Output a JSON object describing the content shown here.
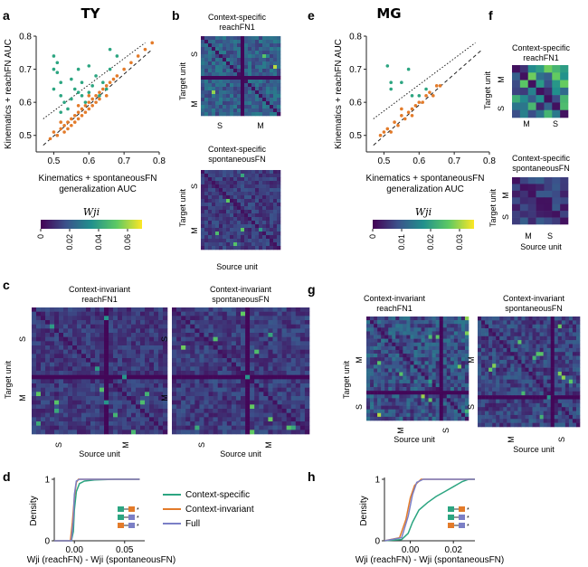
{
  "monkeys": {
    "left": "TY",
    "right": "MG"
  },
  "panel_letters": {
    "a": "a",
    "b": "b",
    "c": "c",
    "d": "d",
    "e": "e",
    "f": "f",
    "g": "g",
    "h": "h"
  },
  "heatmap_titles": {
    "b_top": [
      "Context-specific",
      "reachFN1"
    ],
    "b_bottom": [
      "Context-specific",
      "spontaneousFN"
    ],
    "c_left": [
      "Context-invariant",
      "reachFN1"
    ],
    "c_right": [
      "Context-invariant",
      "spontaneousFN"
    ],
    "f_top": [
      "Context-specific",
      "reachFN1"
    ],
    "f_bottom": [
      "Context-specific",
      "spontaneousFN"
    ],
    "g_left": [
      "Context-invariant",
      "reachFN1"
    ],
    "g_right": [
      "Context-invariant",
      "spontaneousFN"
    ]
  },
  "axis_text": {
    "target_unit": "Target unit",
    "source_unit": "Source unit",
    "S": "S",
    "M": "M"
  },
  "colors": {
    "scatter_green": "#2ca581",
    "scatter_orange": "#e37b2a",
    "heat_dark": "#3b1d6e",
    "context_specific": "#2ca581",
    "context_invariant": "#e37b2a",
    "full": "#7b7fc6"
  },
  "chart_data": [
    {
      "panel": "a",
      "type": "scatter",
      "xlabel": [
        "Kinematics + spontaneousFN",
        "generalization AUC"
      ],
      "ylabel": "Kinematics + reachFN AUC",
      "xlim": [
        0.45,
        0.8
      ],
      "ylim": [
        0.45,
        0.8
      ],
      "xticks": [
        "0.5",
        "0.6",
        "0.7",
        "0.8"
      ],
      "yticks": [
        "0.5",
        "0.6",
        "0.7",
        "0.8"
      ],
      "series": [
        {
          "color": "green",
          "points": [
            [
              0.5,
              0.74
            ],
            [
              0.51,
              0.72
            ],
            [
              0.5,
              0.7
            ],
            [
              0.51,
              0.69
            ],
            [
              0.52,
              0.66
            ],
            [
              0.5,
              0.64
            ],
            [
              0.52,
              0.62
            ],
            [
              0.53,
              0.6
            ],
            [
              0.55,
              0.67
            ],
            [
              0.56,
              0.64
            ],
            [
              0.55,
              0.61
            ],
            [
              0.57,
              0.63
            ],
            [
              0.58,
              0.66
            ],
            [
              0.58,
              0.62
            ],
            [
              0.59,
              0.6
            ],
            [
              0.6,
              0.63
            ],
            [
              0.6,
              0.71
            ],
            [
              0.61,
              0.65
            ],
            [
              0.62,
              0.68
            ],
            [
              0.63,
              0.62
            ],
            [
              0.64,
              0.66
            ],
            [
              0.65,
              0.64
            ],
            [
              0.66,
              0.7
            ],
            [
              0.66,
              0.76
            ],
            [
              0.68,
              0.74
            ],
            [
              0.54,
              0.58
            ],
            [
              0.57,
              0.7
            ],
            [
              0.52,
              0.57
            ]
          ]
        },
        {
          "color": "orange",
          "points": [
            [
              0.49,
              0.49
            ],
            [
              0.5,
              0.51
            ],
            [
              0.51,
              0.5
            ],
            [
              0.52,
              0.52
            ],
            [
              0.53,
              0.53
            ],
            [
              0.54,
              0.54
            ],
            [
              0.54,
              0.52
            ],
            [
              0.55,
              0.55
            ],
            [
              0.56,
              0.56
            ],
            [
              0.56,
              0.54
            ],
            [
              0.57,
              0.57
            ],
            [
              0.58,
              0.58
            ],
            [
              0.58,
              0.56
            ],
            [
              0.59,
              0.59
            ],
            [
              0.6,
              0.6
            ],
            [
              0.6,
              0.58
            ],
            [
              0.61,
              0.61
            ],
            [
              0.62,
              0.62
            ],
            [
              0.62,
              0.6
            ],
            [
              0.63,
              0.63
            ],
            [
              0.64,
              0.64
            ],
            [
              0.65,
              0.65
            ],
            [
              0.66,
              0.66
            ],
            [
              0.67,
              0.67
            ],
            [
              0.68,
              0.68
            ],
            [
              0.7,
              0.7
            ],
            [
              0.72,
              0.72
            ],
            [
              0.74,
              0.74
            ],
            [
              0.76,
              0.76
            ],
            [
              0.78,
              0.78
            ],
            [
              0.53,
              0.51
            ],
            [
              0.55,
              0.53
            ],
            [
              0.57,
              0.55
            ],
            [
              0.59,
              0.57
            ],
            [
              0.61,
              0.59
            ],
            [
              0.63,
              0.61
            ],
            [
              0.65,
              0.62
            ],
            [
              0.52,
              0.54
            ],
            [
              0.57,
              0.59
            ],
            [
              0.6,
              0.62
            ]
          ]
        }
      ]
    },
    {
      "panel": "a-colorbar",
      "type": "colorbar",
      "label": "Wji",
      "range": [
        0,
        0.07
      ],
      "ticks": [
        "0",
        "0.02",
        "0.04",
        "0.06"
      ]
    },
    {
      "panel": "e",
      "type": "scatter",
      "xlabel": [
        "Kinematics + spontaneousFN",
        "generalization AUC"
      ],
      "ylabel": "Kinematics + reachFN AUC",
      "xlim": [
        0.45,
        0.8
      ],
      "ylim": [
        0.45,
        0.8
      ],
      "xticks": [
        "0.5",
        "0.6",
        "0.7",
        "0.8"
      ],
      "yticks": [
        "0.5",
        "0.6",
        "0.7",
        "0.8"
      ],
      "series": [
        {
          "color": "green",
          "points": [
            [
              0.51,
              0.71
            ],
            [
              0.52,
              0.64
            ],
            [
              0.52,
              0.66
            ],
            [
              0.55,
              0.66
            ],
            [
              0.57,
              0.7
            ],
            [
              0.58,
              0.62
            ],
            [
              0.6,
              0.62
            ],
            [
              0.62,
              0.64
            ]
          ]
        },
        {
          "color": "orange",
          "points": [
            [
              0.49,
              0.5
            ],
            [
              0.5,
              0.51
            ],
            [
              0.51,
              0.52
            ],
            [
              0.52,
              0.51
            ],
            [
              0.53,
              0.54
            ],
            [
              0.54,
              0.53
            ],
            [
              0.55,
              0.56
            ],
            [
              0.56,
              0.55
            ],
            [
              0.57,
              0.57
            ],
            [
              0.58,
              0.58
            ],
            [
              0.59,
              0.59
            ],
            [
              0.6,
              0.6
            ],
            [
              0.61,
              0.6
            ],
            [
              0.62,
              0.62
            ],
            [
              0.63,
              0.63
            ],
            [
              0.64,
              0.62
            ],
            [
              0.65,
              0.65
            ],
            [
              0.66,
              0.65
            ],
            [
              0.55,
              0.58
            ],
            [
              0.58,
              0.56
            ]
          ]
        }
      ]
    },
    {
      "panel": "e-colorbar",
      "type": "colorbar",
      "label": "Wji",
      "range": [
        0,
        0.035
      ],
      "ticks": [
        "0",
        "0.01",
        "0.02",
        "0.03"
      ]
    },
    {
      "panel": "d",
      "type": "line",
      "xlabel": "Wji (reachFN) - Wji (spontaneousFN)",
      "ylabel": "Density",
      "xlim": [
        -0.02,
        0.07
      ],
      "ylim": [
        0,
        1
      ],
      "xticks": [
        "0.00",
        "0.05"
      ],
      "yticks": [
        "0",
        "1"
      ],
      "series": [
        {
          "name": "Context-specific",
          "color": "green",
          "points": [
            [
              -0.02,
              0
            ],
            [
              -0.003,
              0
            ],
            [
              -0.001,
              0.15
            ],
            [
              0.0,
              0.5
            ],
            [
              0.002,
              0.8
            ],
            [
              0.005,
              0.93
            ],
            [
              0.01,
              0.97
            ],
            [
              0.02,
              0.99
            ],
            [
              0.04,
              1
            ],
            [
              0.065,
              1
            ]
          ]
        },
        {
          "name": "Context-invariant",
          "color": "orange",
          "points": [
            [
              -0.02,
              0
            ],
            [
              -0.004,
              0
            ],
            [
              -0.002,
              0.3
            ],
            [
              0.0,
              0.7
            ],
            [
              0.002,
              0.95
            ],
            [
              0.004,
              1
            ],
            [
              0.065,
              1
            ]
          ]
        },
        {
          "name": "Full",
          "color": "purple",
          "points": [
            [
              -0.02,
              0
            ],
            [
              -0.003,
              0
            ],
            [
              -0.001,
              0.35
            ],
            [
              0.0,
              0.75
            ],
            [
              0.002,
              0.97
            ],
            [
              0.005,
              1
            ],
            [
              0.065,
              1
            ]
          ]
        }
      ],
      "legend": [
        "Context-specific",
        "Context-invariant",
        "Full"
      ]
    },
    {
      "panel": "h",
      "type": "line",
      "xlabel": "Wji (reachFN) - Wji (spontaneousFN)",
      "ylabel": "Density",
      "xlim": [
        -0.012,
        0.03
      ],
      "ylim": [
        0,
        1
      ],
      "xticks": [
        "0.00",
        "0.02"
      ],
      "yticks": [
        "0",
        "1"
      ],
      "series": [
        {
          "name": "Context-specific",
          "color": "green",
          "points": [
            [
              -0.012,
              0
            ],
            [
              -0.004,
              0.02
            ],
            [
              -0.001,
              0.12
            ],
            [
              0.001,
              0.3
            ],
            [
              0.004,
              0.5
            ],
            [
              0.008,
              0.62
            ],
            [
              0.012,
              0.72
            ],
            [
              0.016,
              0.8
            ],
            [
              0.02,
              0.88
            ],
            [
              0.024,
              0.96
            ],
            [
              0.027,
              1
            ],
            [
              0.03,
              1
            ]
          ]
        },
        {
          "name": "Context-invariant",
          "color": "orange",
          "points": [
            [
              -0.012,
              0
            ],
            [
              -0.005,
              0.05
            ],
            [
              -0.002,
              0.35
            ],
            [
              0.0,
              0.7
            ],
            [
              0.002,
              0.9
            ],
            [
              0.005,
              1
            ],
            [
              0.03,
              1
            ]
          ]
        },
        {
          "name": "Full",
          "color": "purple",
          "points": [
            [
              -0.012,
              0
            ],
            [
              -0.004,
              0.05
            ],
            [
              -0.001,
              0.4
            ],
            [
              0.001,
              0.75
            ],
            [
              0.003,
              0.95
            ],
            [
              0.006,
              1
            ],
            [
              0.03,
              1
            ]
          ]
        }
      ]
    }
  ]
}
